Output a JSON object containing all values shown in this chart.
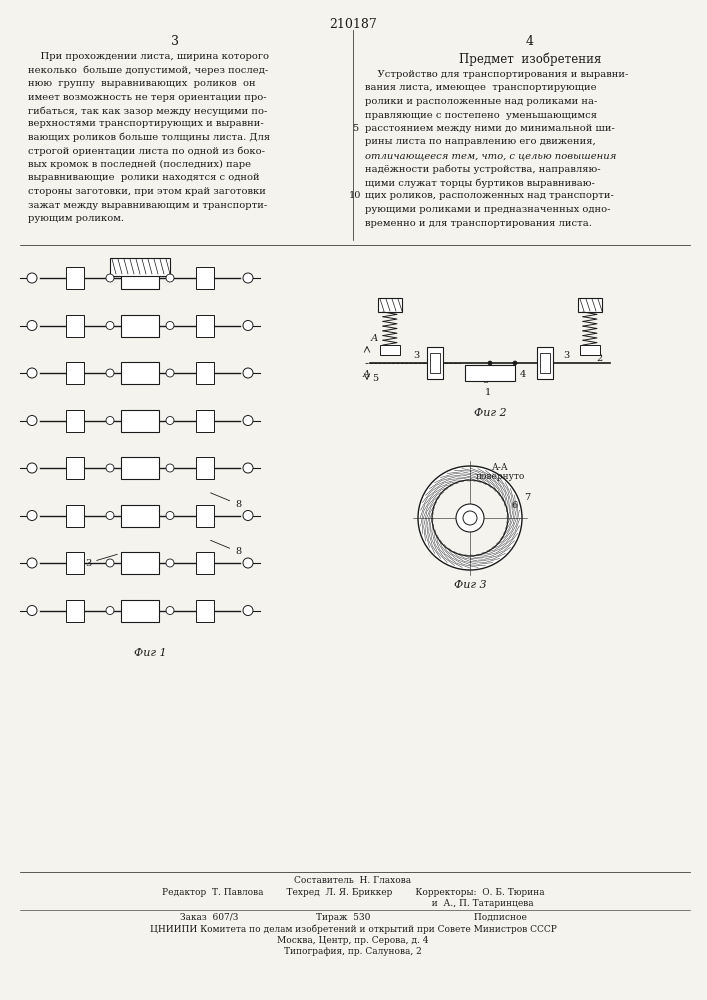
{
  "page_number": "210187",
  "page_cols": [
    "3",
    "4"
  ],
  "background_color": "#f5f3ee",
  "text_color": "#1a1a1a",
  "title_right": "Предмет  изобретения",
  "left_text": [
    "    При прохождении листа, ширина которого",
    "неколько  больше допустимой, через послед-",
    "нюю  группу  выравнивающих  роликов  он",
    "имеет возможность не теря ориентации про-",
    "гибаться, так как зазор между несущими по-",
    "верхностями транспортирующих и выравни-",
    "вающих роликов больше толщины листа. Для",
    "строгой ориентации листа по одной из боко-",
    "вых кромок в последней (последних) паре",
    "выравнивающие  ролики находятся с одной",
    "стороны заготовки, при этом край заготовки",
    "зажат между выравнивающим и транспорти-",
    "рующим роликом."
  ],
  "right_text": [
    "    Устройство для транспортирования и выравни-",
    "вания листа, имеющее  транспортирующие",
    "ролики и расположенные над роликами на-",
    "правляющие с постепено  уменьшающимся",
    "расстоянием между ними до минимальной ши-",
    "рины листа по направлению его движения,",
    "отличающееся тем, что, с целью повышения",
    "надёжности работы устройства, направляю-",
    "щими служат торцы буртиков выравниваю-",
    "щих роликов, расположенных над транспорти-",
    "рующими роликами и предназначенных одно-",
    "временно и для транспортирования листа."
  ],
  "fig1_label": "Фиг 1",
  "fig2_label": "Фиг 2",
  "fig3_label": "Фиг 3",
  "footer_lines": [
    "Составитель  Н. Глахова",
    "Редактор  Т. Павлова        Техред  Л. Я. Бриккер        Корректоры:  О. Б. Тюрина",
    "                                                                                          и  А., П. Татаринцева",
    "Заказ  607/3                           Тираж  530                                    Подписное",
    "ЦНИИПИ Комитета по делам изобретений и открытий при Совете Министров СССР",
    "Москва, Центр, пр. Серова, д. 4",
    "Типография, пр. Салунова, 2"
  ]
}
